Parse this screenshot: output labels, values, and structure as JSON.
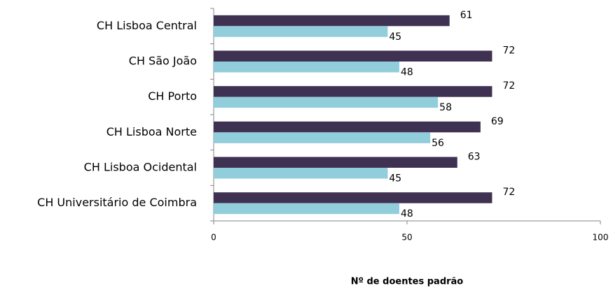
{
  "chart_data": {
    "type": "bar",
    "orientation": "horizontal",
    "categories": [
      "CH Lisboa Central",
      "CH São João",
      "CH Porto",
      "CH Lisboa Norte",
      "CH Lisboa Ocidental",
      "CH Universitário de Coimbra"
    ],
    "series": [
      {
        "color": "#3f3151",
        "values": [
          61,
          72,
          72,
          69,
          63,
          72
        ]
      },
      {
        "color": "#92cddc",
        "values": [
          45,
          48,
          58,
          56,
          45,
          48
        ]
      }
    ],
    "xlim": [
      0,
      100
    ],
    "xticks": [
      0,
      50,
      100
    ],
    "xlabel": "Nº de doentes padrão"
  }
}
